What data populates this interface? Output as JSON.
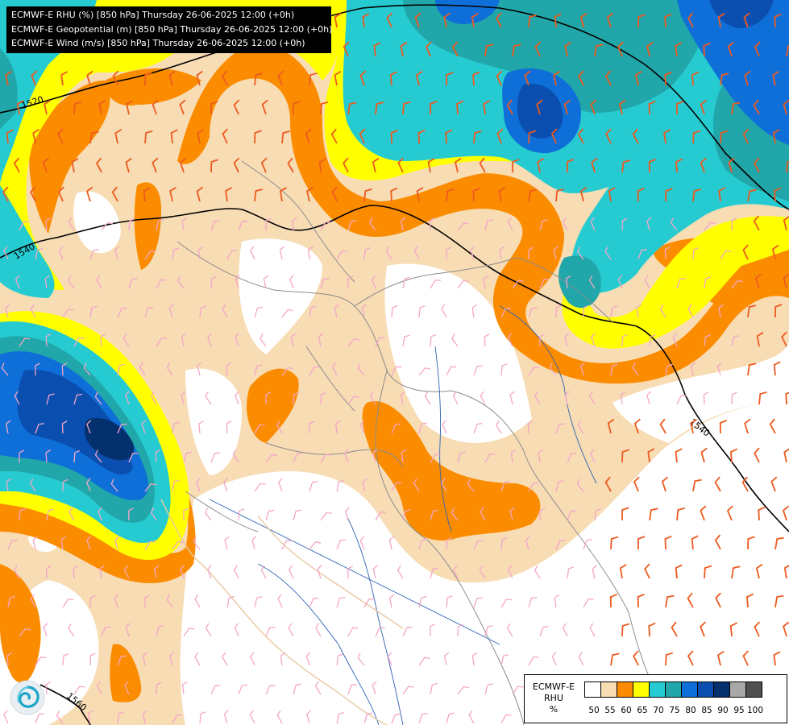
{
  "header": {
    "lines": [
      "ECMWF-E RHU (%) [850 hPa] Thursday 26-06-2025 12:00 (+0h)",
      "ECMWF-E Geopotential (m) [850 hPa] Thursday 26-06-2025 12:00 (+0h)",
      "ECMWF-E Wind (m/s) [850 hPa] Thursday 26-06-2025 12:00 (+0h)"
    ]
  },
  "contours": {
    "labels": [
      "1520",
      "1540",
      "1540",
      "1560"
    ]
  },
  "legend": {
    "title_lines": [
      "ECMWF-E",
      "RHU",
      "%"
    ],
    "levels": [
      "50",
      "55",
      "60",
      "65",
      "70",
      "75",
      "80",
      "85",
      "90",
      "95",
      "100"
    ],
    "colors": [
      "#ffffff",
      "#f7dcb4",
      "#fb8c00",
      "#ffff00",
      "#26cbd1",
      "#21a6a9",
      "#0f6fd8",
      "#0a4fb0",
      "#05306e",
      "#a8a8a8",
      "#505050"
    ]
  },
  "colors": {
    "beige": "#f7dcb4",
    "orange": "#fb8c00",
    "yellow": "#ffff00",
    "cyan": "#26cbd1",
    "teal": "#21a6a9",
    "blue": "#0f6fd8",
    "dark_blue": "#0a4fb0",
    "navy": "#05306e",
    "barb_light": "#f4a6c8",
    "barb_strong": "#ee5a1f",
    "country_border": "#7f7f7f",
    "coast": "#e8c9a0",
    "river": "#2f62b4"
  },
  "logo": {
    "icon": "ecmwf-swirl-logo-icon"
  }
}
